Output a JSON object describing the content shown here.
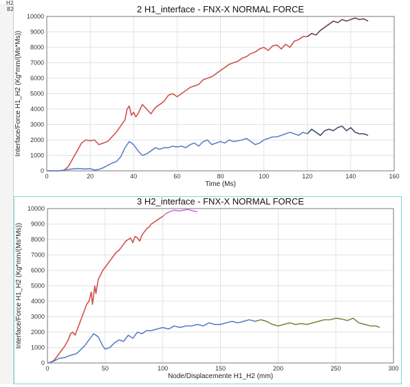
{
  "side_labels": [
    "H2",
    "82"
  ],
  "chart_data": [
    {
      "type": "line",
      "title": "2 H1_interface - FNX-X NORMAL FORCE",
      "xlabel": "Time (Ms)",
      "ylabel": "Interface/Force H1_H2 (Kg*mm/(Ms*Ms))",
      "xlim": [
        0,
        160
      ],
      "ylim": [
        0,
        10000
      ],
      "xticks": [
        0,
        20,
        40,
        60,
        80,
        100,
        120,
        140,
        160
      ],
      "yticks": [
        0,
        1000,
        2000,
        3000,
        4000,
        5000,
        6000,
        7000,
        8000,
        9000,
        10000
      ],
      "grid": true,
      "series": [
        {
          "color": "#d0504a",
          "points": [
            [
              0,
              0
            ],
            [
              5,
              0
            ],
            [
              8,
              50
            ],
            [
              10,
              300
            ],
            [
              12,
              800
            ],
            [
              14,
              1300
            ],
            [
              16,
              1800
            ],
            [
              18,
              2000
            ],
            [
              20,
              1950
            ],
            [
              22,
              2000
            ],
            [
              24,
              1700
            ],
            [
              26,
              1800
            ],
            [
              28,
              1900
            ],
            [
              30,
              2200
            ],
            [
              32,
              2500
            ],
            [
              34,
              2900
            ],
            [
              36,
              3300
            ],
            [
              37,
              4000
            ],
            [
              38,
              4200
            ],
            [
              39,
              3600
            ],
            [
              40,
              3800
            ],
            [
              41,
              3500
            ],
            [
              42,
              3700
            ],
            [
              44,
              4300
            ],
            [
              46,
              4000
            ],
            [
              48,
              3700
            ],
            [
              50,
              4100
            ],
            [
              52,
              4300
            ],
            [
              54,
              4500
            ],
            [
              56,
              4900
            ],
            [
              58,
              5000
            ],
            [
              60,
              4800
            ],
            [
              62,
              5000
            ],
            [
              64,
              5200
            ],
            [
              66,
              5400
            ],
            [
              68,
              5500
            ],
            [
              70,
              5600
            ],
            [
              72,
              5900
            ],
            [
              74,
              6000
            ],
            [
              76,
              6100
            ],
            [
              78,
              6300
            ],
            [
              80,
              6500
            ],
            [
              82,
              6700
            ],
            [
              84,
              6900
            ],
            [
              86,
              7000
            ],
            [
              88,
              7100
            ],
            [
              90,
              7300
            ],
            [
              92,
              7400
            ],
            [
              94,
              7600
            ],
            [
              96,
              7700
            ],
            [
              98,
              7900
            ],
            [
              100,
              8000
            ],
            [
              102,
              7800
            ],
            [
              104,
              8100
            ],
            [
              106,
              8150
            ],
            [
              108,
              7900
            ],
            [
              110,
              8200
            ],
            [
              112,
              8000
            ],
            [
              114,
              8400
            ],
            [
              116,
              8500
            ],
            [
              118,
              8700
            ],
            [
              120,
              8700
            ]
          ]
        },
        {
          "color": "#6d3a52",
          "points": [
            [
              120,
              8700
            ],
            [
              122,
              8900
            ],
            [
              124,
              8800
            ],
            [
              126,
              9100
            ],
            [
              128,
              9300
            ],
            [
              130,
              9500
            ],
            [
              132,
              9700
            ],
            [
              134,
              9600
            ],
            [
              136,
              9800
            ],
            [
              138,
              9700
            ],
            [
              140,
              9800
            ],
            [
              142,
              9900
            ],
            [
              144,
              9800
            ],
            [
              146,
              9850
            ],
            [
              148,
              9700
            ]
          ]
        },
        {
          "color": "#5b7fc8",
          "points": [
            [
              0,
              0
            ],
            [
              6,
              0
            ],
            [
              10,
              100
            ],
            [
              14,
              150
            ],
            [
              18,
              120
            ],
            [
              20,
              150
            ],
            [
              22,
              50
            ],
            [
              24,
              100
            ],
            [
              26,
              200
            ],
            [
              28,
              350
            ],
            [
              30,
              500
            ],
            [
              32,
              600
            ],
            [
              34,
              900
            ],
            [
              36,
              1500
            ],
            [
              38,
              1900
            ],
            [
              40,
              1700
            ],
            [
              42,
              1300
            ],
            [
              44,
              1000
            ],
            [
              46,
              1100
            ],
            [
              48,
              1300
            ],
            [
              50,
              1500
            ],
            [
              52,
              1400
            ],
            [
              54,
              1500
            ],
            [
              56,
              1500
            ],
            [
              58,
              1600
            ],
            [
              60,
              1550
            ],
            [
              62,
              1600
            ],
            [
              64,
              1500
            ],
            [
              66,
              1700
            ],
            [
              68,
              1800
            ],
            [
              70,
              1600
            ],
            [
              72,
              1900
            ],
            [
              74,
              2000
            ],
            [
              76,
              1700
            ],
            [
              78,
              1800
            ],
            [
              80,
              1900
            ],
            [
              82,
              1800
            ],
            [
              84,
              2000
            ],
            [
              86,
              1900
            ],
            [
              88,
              1950
            ],
            [
              90,
              2000
            ],
            [
              92,
              2100
            ],
            [
              94,
              1900
            ],
            [
              96,
              1700
            ],
            [
              98,
              1800
            ],
            [
              100,
              2000
            ],
            [
              102,
              2100
            ],
            [
              104,
              2200
            ],
            [
              106,
              2200
            ],
            [
              108,
              2300
            ],
            [
              110,
              2400
            ],
            [
              112,
              2500
            ],
            [
              114,
              2400
            ],
            [
              116,
              2300
            ],
            [
              118,
              2500
            ],
            [
              120,
              2400
            ]
          ]
        },
        {
          "color": "#3f4a6e",
          "points": [
            [
              120,
              2400
            ],
            [
              122,
              2700
            ],
            [
              124,
              2500
            ],
            [
              126,
              2300
            ],
            [
              128,
              2600
            ],
            [
              130,
              2700
            ],
            [
              132,
              2600
            ],
            [
              134,
              2800
            ],
            [
              136,
              2900
            ],
            [
              138,
              2600
            ],
            [
              140,
              2800
            ],
            [
              142,
              2500
            ],
            [
              144,
              2400
            ],
            [
              146,
              2400
            ],
            [
              148,
              2300
            ]
          ]
        }
      ]
    },
    {
      "type": "line",
      "title": "3 H2_interface - FNX-X NORMAL FORCE",
      "xlabel": "Node/Displacemente H1_H2 (mm)",
      "ylabel": "Interface/Force H1_H2 (Kg*mm/(Ms*Ms))",
      "xlim": [
        0,
        300
      ],
      "ylim": [
        0,
        10000
      ],
      "xticks": [
        0,
        50,
        100,
        150,
        200,
        250,
        300
      ],
      "yticks": [
        0,
        1000,
        2000,
        3000,
        4000,
        5000,
        6000,
        7000,
        8000,
        9000,
        10000
      ],
      "grid": true,
      "series": [
        {
          "color": "#d0504a",
          "points": [
            [
              0,
              0
            ],
            [
              3,
              50
            ],
            [
              6,
              200
            ],
            [
              10,
              600
            ],
            [
              15,
              1100
            ],
            [
              18,
              1500
            ],
            [
              20,
              1900
            ],
            [
              22,
              2000
            ],
            [
              24,
              1800
            ],
            [
              26,
              2200
            ],
            [
              28,
              2600
            ],
            [
              30,
              3000
            ],
            [
              32,
              3400
            ],
            [
              34,
              3800
            ],
            [
              36,
              4000
            ],
            [
              38,
              4600
            ],
            [
              39,
              3800
            ],
            [
              40,
              4400
            ],
            [
              41,
              5000
            ],
            [
              42,
              4500
            ],
            [
              44,
              5400
            ],
            [
              46,
              5700
            ],
            [
              48,
              6000
            ],
            [
              50,
              6200
            ],
            [
              52,
              6400
            ],
            [
              54,
              6600
            ],
            [
              56,
              6800
            ],
            [
              58,
              7000
            ],
            [
              60,
              7200
            ],
            [
              62,
              7300
            ],
            [
              64,
              7500
            ],
            [
              66,
              7700
            ],
            [
              68,
              7900
            ],
            [
              70,
              8000
            ],
            [
              72,
              8100
            ],
            [
              74,
              7800
            ],
            [
              76,
              8200
            ],
            [
              78,
              8100
            ],
            [
              80,
              7900
            ],
            [
              82,
              8300
            ],
            [
              84,
              8500
            ],
            [
              86,
              8700
            ],
            [
              88,
              8800
            ],
            [
              90,
              9000
            ],
            [
              92,
              9100
            ],
            [
              94,
              9200
            ],
            [
              96,
              9300
            ],
            [
              98,
              9400
            ],
            [
              100,
              9500
            ]
          ]
        },
        {
          "color": "#c874d8",
          "points": [
            [
              100,
              9500
            ],
            [
              103,
              9700
            ],
            [
              106,
              9800
            ],
            [
              110,
              9900
            ],
            [
              114,
              9850
            ],
            [
              118,
              9900
            ],
            [
              122,
              9950
            ],
            [
              126,
              9850
            ],
            [
              130,
              9800
            ]
          ]
        },
        {
          "color": "#5b7fc8",
          "points": [
            [
              0,
              0
            ],
            [
              5,
              100
            ],
            [
              10,
              300
            ],
            [
              15,
              350
            ],
            [
              20,
              500
            ],
            [
              25,
              600
            ],
            [
              28,
              800
            ],
            [
              32,
              1100
            ],
            [
              36,
              1500
            ],
            [
              40,
              1900
            ],
            [
              44,
              1700
            ],
            [
              48,
              1100
            ],
            [
              50,
              900
            ],
            [
              54,
              1000
            ],
            [
              58,
              1300
            ],
            [
              62,
              1500
            ],
            [
              66,
              1400
            ],
            [
              70,
              1800
            ],
            [
              74,
              1600
            ],
            [
              78,
              2000
            ],
            [
              82,
              1900
            ],
            [
              86,
              2100
            ],
            [
              90,
              2100
            ],
            [
              95,
              2200
            ],
            [
              100,
              2300
            ],
            [
              105,
              2200
            ],
            [
              110,
              2400
            ],
            [
              115,
              2300
            ],
            [
              120,
              2400
            ],
            [
              125,
              2400
            ],
            [
              130,
              2500
            ],
            [
              135,
              2400
            ],
            [
              140,
              2600
            ],
            [
              145,
              2500
            ],
            [
              150,
              2500
            ],
            [
              155,
              2600
            ],
            [
              160,
              2700
            ],
            [
              165,
              2600
            ],
            [
              170,
              2700
            ],
            [
              175,
              2800
            ],
            [
              180,
              2700
            ]
          ]
        },
        {
          "color": "#7a8a3e",
          "points": [
            [
              180,
              2700
            ],
            [
              185,
              2800
            ],
            [
              190,
              2700
            ],
            [
              195,
              2500
            ],
            [
              200,
              2400
            ],
            [
              205,
              2500
            ],
            [
              210,
              2600
            ],
            [
              215,
              2500
            ],
            [
              220,
              2550
            ],
            [
              225,
              2500
            ],
            [
              230,
              2600
            ],
            [
              235,
              2700
            ],
            [
              240,
              2800
            ],
            [
              245,
              2800
            ],
            [
              250,
              2900
            ],
            [
              255,
              2850
            ],
            [
              260,
              2750
            ],
            [
              265,
              2900
            ],
            [
              270,
              2600
            ],
            [
              275,
              2500
            ],
            [
              280,
              2400
            ],
            [
              285,
              2400
            ],
            [
              288,
              2300
            ]
          ]
        }
      ]
    }
  ]
}
